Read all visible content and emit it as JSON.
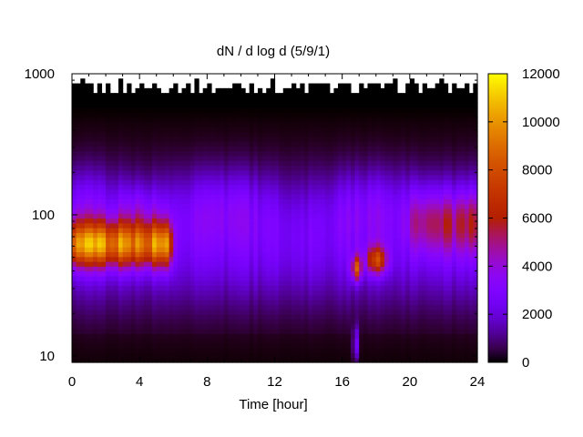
{
  "chart_data": {
    "type": "heatmap",
    "title": "dN / d log d (5/9/1)",
    "xlabel": "Time [hour]",
    "ylabel": "",
    "x_range": [
      0,
      24
    ],
    "y_range": [
      9,
      1000
    ],
    "y_scale": "log",
    "x_ticks": [
      "0",
      "4",
      "8",
      "12",
      "16",
      "20",
      "24"
    ],
    "x_tick_values": [
      0,
      4,
      8,
      12,
      16,
      20,
      24
    ],
    "y_ticks": [
      "10",
      "100",
      "1000"
    ],
    "y_tick_values": [
      10,
      100,
      1000
    ],
    "colorbar": {
      "range": [
        0,
        12000
      ],
      "ticks": [
        "0",
        "2000",
        "4000",
        "6000",
        "8000",
        "10000",
        "12000"
      ],
      "tick_values": [
        0,
        2000,
        4000,
        6000,
        8000,
        10000,
        12000
      ],
      "colormap": "gnuplot"
    },
    "features": [
      {
        "x_range": [
          0,
          6
        ],
        "d_center": 62,
        "value": 10000
      },
      {
        "x_range": [
          16.5,
          17.2
        ],
        "d_center": 42,
        "value": 9000
      },
      {
        "x_range": [
          17.3,
          18.8
        ],
        "d_center": 48,
        "value": 8500
      },
      {
        "x_range": [
          19.5,
          24
        ],
        "d_center": 90,
        "value": 6500
      },
      {
        "x_range": [
          6,
          16.5
        ],
        "d_center": 60,
        "value": 3800
      }
    ],
    "grid": false,
    "legend": "colorbar-right"
  }
}
